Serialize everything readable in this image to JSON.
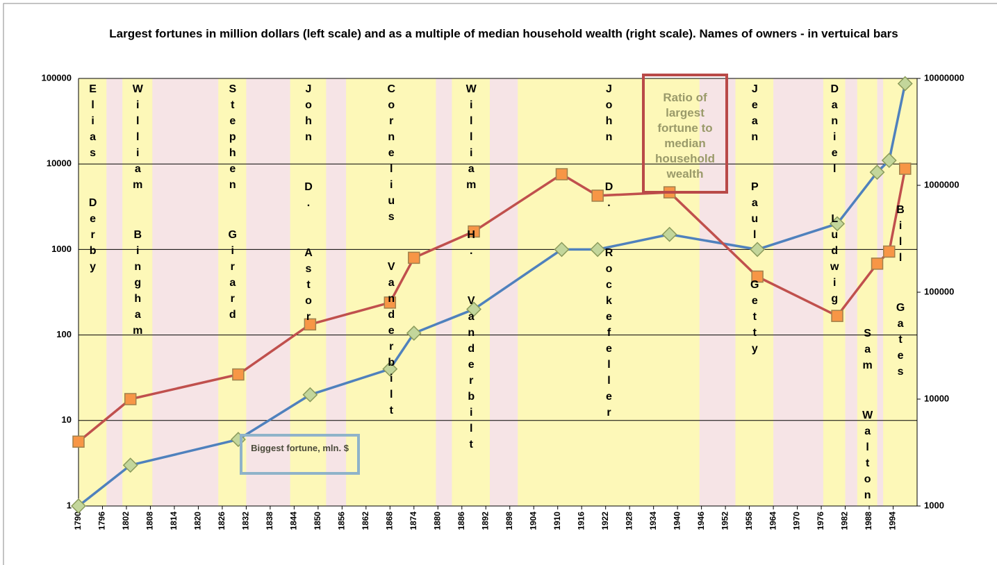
{
  "chart_data": {
    "type": "line",
    "title": "Largest fortunes in million dollars (left scale) and as a multiple of median household wealth (right scale). Names of owners - in vertuical bars",
    "x": [
      1790,
      1803,
      1830,
      1848,
      1868,
      1874,
      1889,
      1911,
      1920,
      1938,
      1960,
      1980,
      1990,
      1993,
      1997
    ],
    "series": [
      {
        "name": "Biggest fortune, mln. $",
        "color": "#4f81bd",
        "marker_color": "#c3d69b",
        "axis": "y",
        "values": [
          1,
          3,
          6,
          20,
          40,
          105,
          200,
          1000,
          1000,
          1500,
          1000,
          2000,
          8000,
          11000,
          87000
        ]
      },
      {
        "name": "Ratio of largest fortune to median household wealth",
        "color": "#c0504d",
        "marker_color": "#f79646",
        "axis": "y2",
        "values": [
          4000,
          10000,
          17000,
          50000,
          80000,
          210000,
          370000,
          1270000,
          800000,
          860000,
          140000,
          60000,
          185000,
          240000,
          1430000
        ]
      }
    ],
    "owners": [
      {
        "name": "Elias Derby",
        "start": 1790,
        "end": 1797
      },
      {
        "name": "William Bingham",
        "start": 1801,
        "end": 1808.5
      },
      {
        "name": "Stephen Girard",
        "start": 1825,
        "end": 1832
      },
      {
        "name": "John D. Astor",
        "start": 1843,
        "end": 1852
      },
      {
        "name": "Cornelius Vanderbilt",
        "start": 1857,
        "end": 1879.5
      },
      {
        "name": "William H. Vanderbilt",
        "start": 1883.5,
        "end": 1893
      },
      {
        "name": "John D. Rockefeller",
        "start": 1900,
        "end": 1945.5
      },
      {
        "name": "Jean Paul Getty",
        "start": 1954.5,
        "end": 1964
      },
      {
        "name": "Daniel Ludwig",
        "start": 1976.5,
        "end": 1982
      },
      {
        "name": "Sam Walton",
        "start": 1985,
        "end": 1990
      },
      {
        "name": "Bill Gates",
        "start": 1991.5,
        "end": 2000
      }
    ],
    "xlim": [
      1790,
      2000
    ],
    "xticks": [
      1790,
      1796,
      1802,
      1808,
      1814,
      1820,
      1826,
      1832,
      1838,
      1844,
      1850,
      1856,
      1862,
      1868,
      1874,
      1880,
      1886,
      1892,
      1898,
      1904,
      1910,
      1916,
      1922,
      1928,
      1934,
      1940,
      1946,
      1952,
      1958,
      1964,
      1970,
      1976,
      1982,
      1988,
      1994
    ],
    "ylim": [
      1,
      100000
    ],
    "yticks": [
      1,
      10,
      100,
      1000,
      10000,
      100000
    ],
    "y2lim": [
      1000,
      10000000
    ],
    "y2ticks": [
      1000,
      10000,
      100000,
      1000000,
      10000000
    ],
    "log_scale": true,
    "grid": true
  }
}
